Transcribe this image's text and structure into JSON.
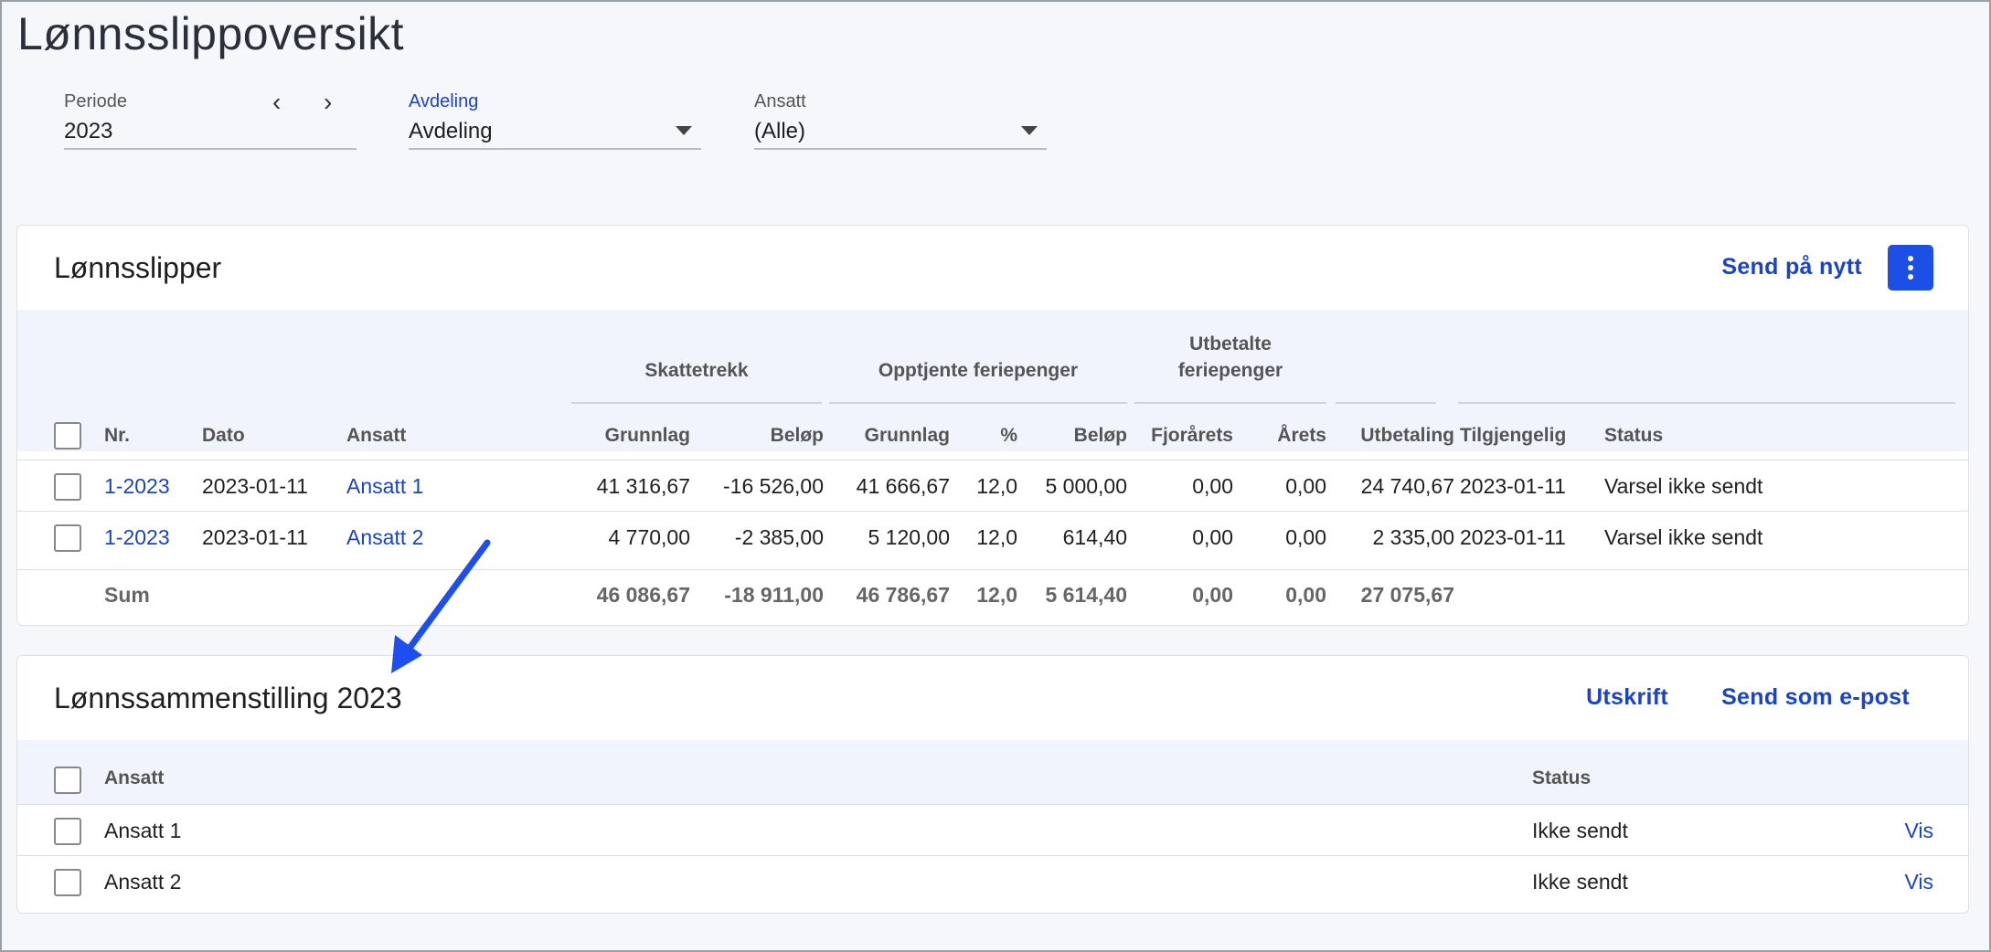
{
  "page": {
    "title": "Lønnsslippoversikt"
  },
  "filters": {
    "periode": {
      "label": "Periode",
      "value": "2023"
    },
    "avdeling": {
      "label": "Avdeling",
      "value": "Avdeling"
    },
    "ansatt": {
      "label": "Ansatt",
      "value": "(Alle)"
    }
  },
  "payslips": {
    "title": "Lønnsslipper",
    "resend_label": "Send på nytt",
    "group_headers": {
      "skattetrekk": "Skattetrekk",
      "opptjente": "Opptjente feriepenger",
      "utbetalte_line1": "Utbetalte",
      "utbetalte_line2": "feriepenger"
    },
    "columns": {
      "nr": "Nr.",
      "dato": "Dato",
      "ansatt": "Ansatt",
      "skatt_grunnlag": "Grunnlag",
      "skatt_belop": "Beløp",
      "ferie_grunnlag": "Grunnlag",
      "ferie_pct": "%",
      "ferie_belop": "Beløp",
      "fjorarets": "Fjorårets",
      "arets": "Årets",
      "utbetaling": "Utbetaling",
      "tilgjengelig": "Tilgjengelig",
      "status": "Status"
    },
    "rows": [
      {
        "nr": "1-2023",
        "dato": "2023-01-11",
        "ansatt": "Ansatt 1",
        "skatt_grunnlag": "41 316,67",
        "skatt_belop": "-16 526,00",
        "ferie_grunnlag": "41 666,67",
        "ferie_pct": "12,0",
        "ferie_belop": "5 000,00",
        "fjorarets": "0,00",
        "arets": "0,00",
        "utbetaling": "24 740,67",
        "tilgjengelig": "2023-01-11",
        "status": "Varsel ikke sendt"
      },
      {
        "nr": "1-2023",
        "dato": "2023-01-11",
        "ansatt": "Ansatt 2",
        "skatt_grunnlag": "4 770,00",
        "skatt_belop": "-2 385,00",
        "ferie_grunnlag": "5 120,00",
        "ferie_pct": "12,0",
        "ferie_belop": "614,40",
        "fjorarets": "0,00",
        "arets": "0,00",
        "utbetaling": "2 335,00",
        "tilgjengelig": "2023-01-11",
        "status": "Varsel ikke sendt"
      }
    ],
    "sum": {
      "label": "Sum",
      "skatt_grunnlag": "46 086,67",
      "skatt_belop": "-18 911,00",
      "ferie_grunnlag": "46 786,67",
      "ferie_pct": "12,0",
      "ferie_belop": "5 614,40",
      "fjorarets": "0,00",
      "arets": "0,00",
      "utbetaling": "27 075,67"
    }
  },
  "summary": {
    "title": "Lønnssammenstilling 2023",
    "print_label": "Utskrift",
    "email_label": "Send som e-post",
    "columns": {
      "ansatt": "Ansatt",
      "status": "Status"
    },
    "rows": [
      {
        "ansatt": "Ansatt 1",
        "status": "Ikke sendt",
        "action": "Vis"
      },
      {
        "ansatt": "Ansatt 2",
        "status": "Ikke sendt",
        "action": "Vis"
      }
    ]
  },
  "colors": {
    "accent": "#1a44c4",
    "button": "#1d4ee6",
    "annotation_arrow": "#1f4ef0"
  }
}
